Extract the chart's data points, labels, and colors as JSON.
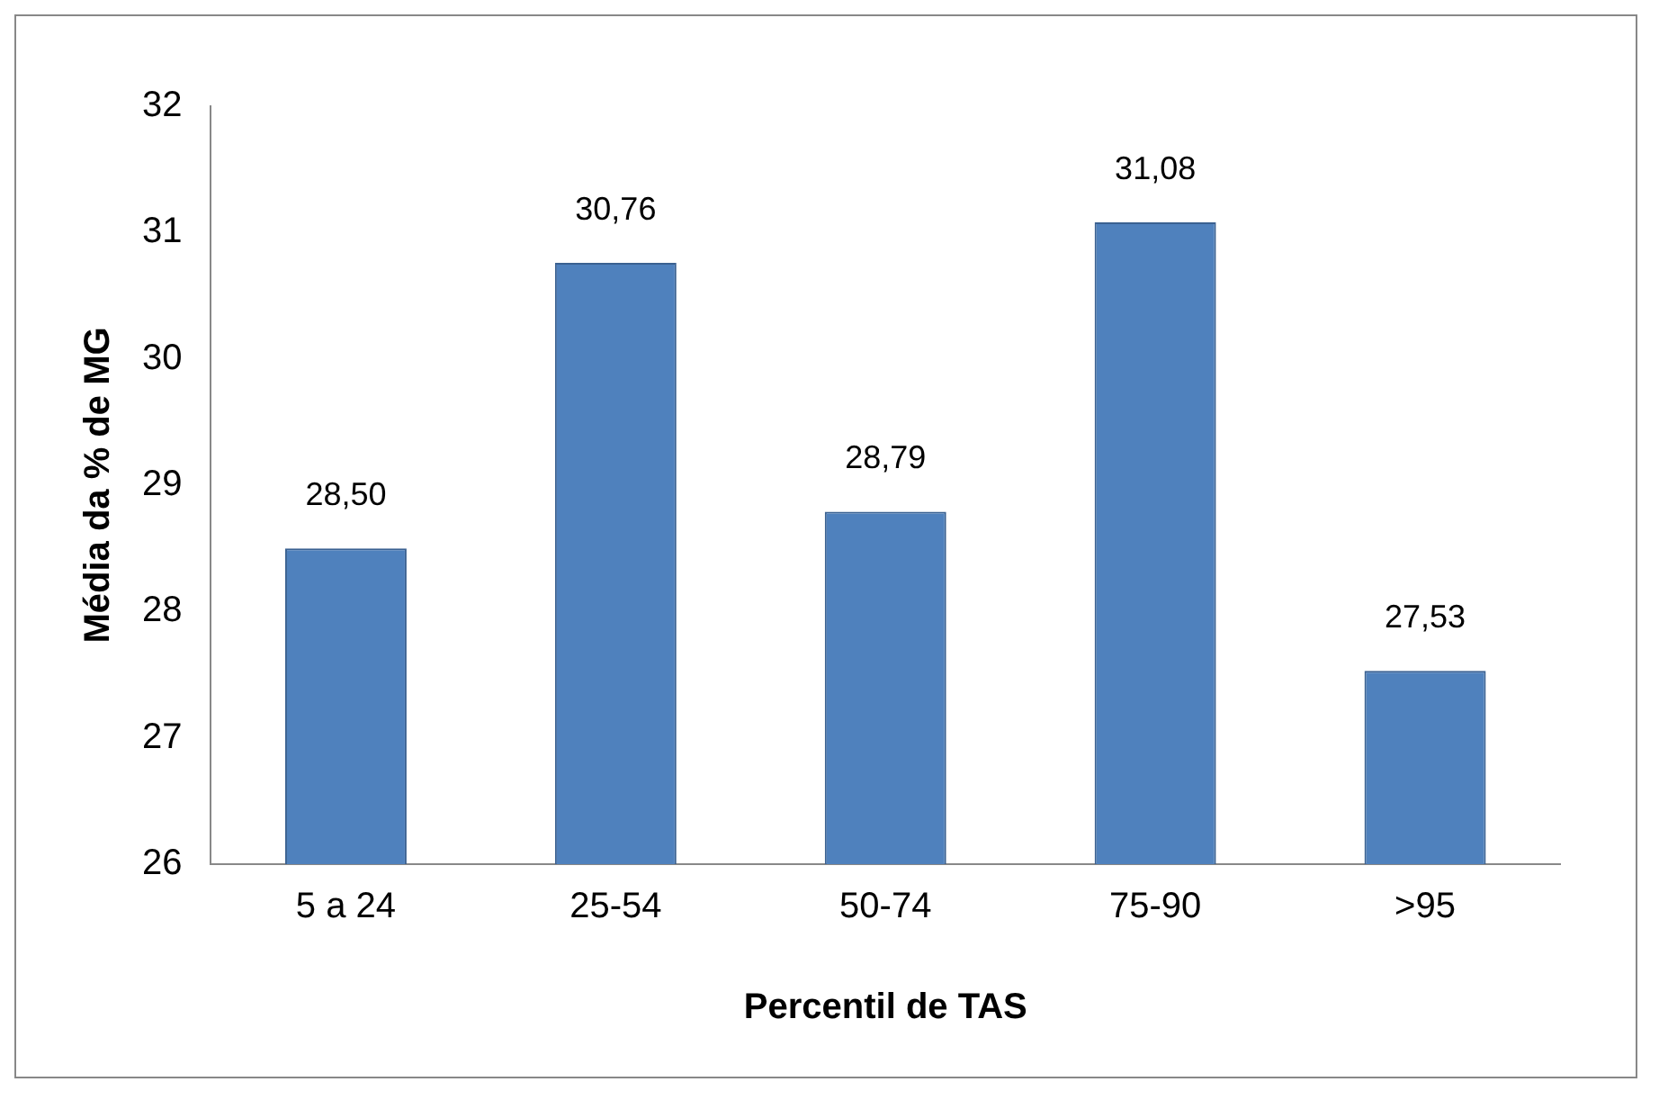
{
  "chart_data": {
    "type": "bar",
    "xlabel": "Percentil de TAS",
    "ylabel": "Média da % de MG",
    "categories": [
      "5 a 24",
      "25-54",
      "50-74",
      "75-90",
      ">95"
    ],
    "values": [
      28.5,
      30.76,
      28.79,
      31.08,
      27.53
    ],
    "value_labels": [
      "28,50",
      "30,76",
      "28,79",
      "31,08",
      "27,53"
    ],
    "color": "#4f81bd",
    "ylim": [
      26,
      32
    ],
    "yticks": [
      26,
      27,
      28,
      29,
      30,
      31,
      32
    ],
    "grid": false,
    "legend": false
  }
}
